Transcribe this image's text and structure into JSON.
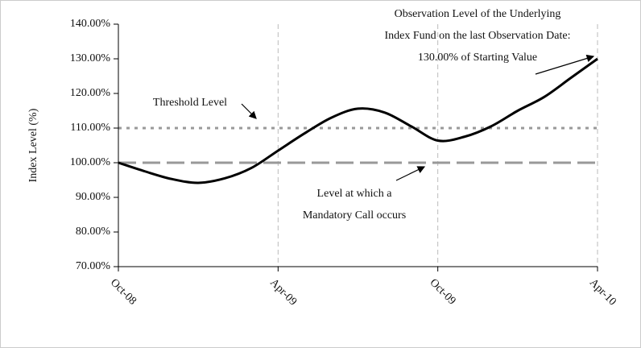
{
  "chart_data": {
    "type": "line",
    "ylabel": "Index Level (%)",
    "categories": [
      "Oct-08",
      null,
      null,
      null,
      null,
      null,
      "Apr-09",
      null,
      null,
      null,
      null,
      null,
      "Oct-09",
      null,
      null,
      null,
      null,
      null,
      "Apr-10"
    ],
    "series": [
      {
        "color": "#000000",
        "values": [
          100,
          97.5,
          95.3,
          94.2,
          95.5,
          98.5,
          103.5,
          108.5,
          113,
          115.6,
          114.5,
          110.5,
          106.4,
          107.5,
          110.5,
          115,
          119,
          124.5,
          130
        ]
      }
    ],
    "ylim": [
      70,
      140
    ],
    "yticks": [
      {
        "value": 70,
        "label": "70.00%"
      },
      {
        "value": 80,
        "label": "80.00%"
      },
      {
        "value": 90,
        "label": "90.00%"
      },
      {
        "value": 100,
        "label": "100.00%"
      },
      {
        "value": 110,
        "label": "110.00%"
      },
      {
        "value": 120,
        "label": "120.00%"
      },
      {
        "value": 130,
        "label": "130.00%"
      },
      {
        "value": 140,
        "label": "140.00%"
      }
    ],
    "reference_lines": [
      {
        "value": 110,
        "color": "#999999",
        "style": "dotted"
      },
      {
        "value": 100,
        "color": "#999999",
        "style": "dashed"
      }
    ],
    "x_grid": true,
    "annotations": {
      "threshold": [
        "Threshold Level"
      ],
      "call": [
        "Level at which a",
        "Mandatory Call occurs"
      ],
      "observation": [
        "Observation Level of the Underlying",
        "Index Fund on the last Observation Date:",
        "130.00% of Starting Value"
      ]
    }
  }
}
